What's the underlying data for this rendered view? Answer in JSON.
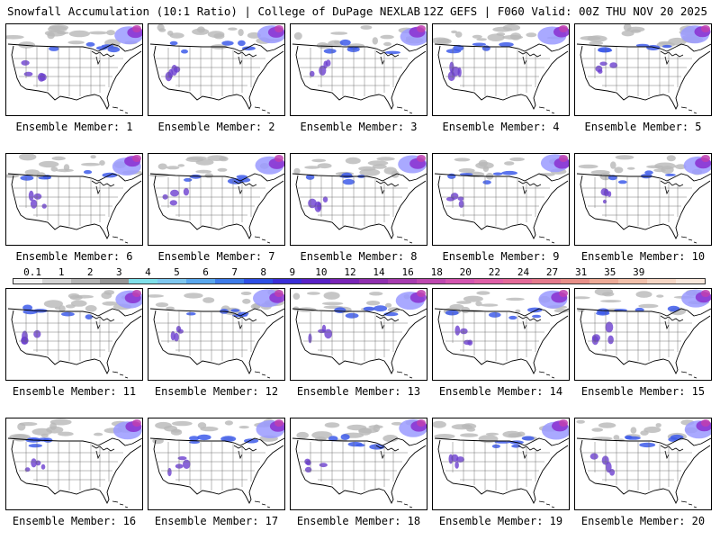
{
  "header": {
    "left": "Snowfall Accumulation (10:1 Ratio) | College of DuPage NEXLAB",
    "right": "12Z GEFS | F060 Valid: 00Z THU NOV 20 2025"
  },
  "members": [
    "Ensemble Member: 1",
    "Ensemble Member: 2",
    "Ensemble Member: 3",
    "Ensemble Member: 4",
    "Ensemble Member: 5",
    "Ensemble Member: 6",
    "Ensemble Member: 7",
    "Ensemble Member: 8",
    "Ensemble Member: 9",
    "Ensemble Member: 10",
    "Ensemble Member: 11",
    "Ensemble Member: 12",
    "Ensemble Member: 13",
    "Ensemble Member: 14",
    "Ensemble Member: 15",
    "Ensemble Member: 16",
    "Ensemble Member: 17",
    "Ensemble Member: 18",
    "Ensemble Member: 19",
    "Ensemble Member: 20"
  ],
  "colorbar": {
    "labels": [
      "0.1",
      "1",
      "2",
      "3",
      "4",
      "5",
      "6",
      "7",
      "8",
      "9",
      "10",
      "12",
      "14",
      "16",
      "18",
      "20",
      "22",
      "24",
      "27",
      "31",
      "35",
      "39"
    ],
    "colors": [
      "#f4f4f4",
      "#d4d4d4",
      "#b4b4b4",
      "#969696",
      "#7fe0ea",
      "#7fc8f0",
      "#5aa8ee",
      "#3e7cea",
      "#2e4fe6",
      "#3b2ed8",
      "#5a22c8",
      "#7a25b8",
      "#9130b0",
      "#a83cb0",
      "#bf48b0",
      "#d455b0",
      "#e060a8",
      "#e46a98",
      "#e57a8c",
      "#e88f88",
      "#edaa96",
      "#f2c0aa",
      "#f6d6c4",
      "#f9e8dc"
    ]
  }
}
